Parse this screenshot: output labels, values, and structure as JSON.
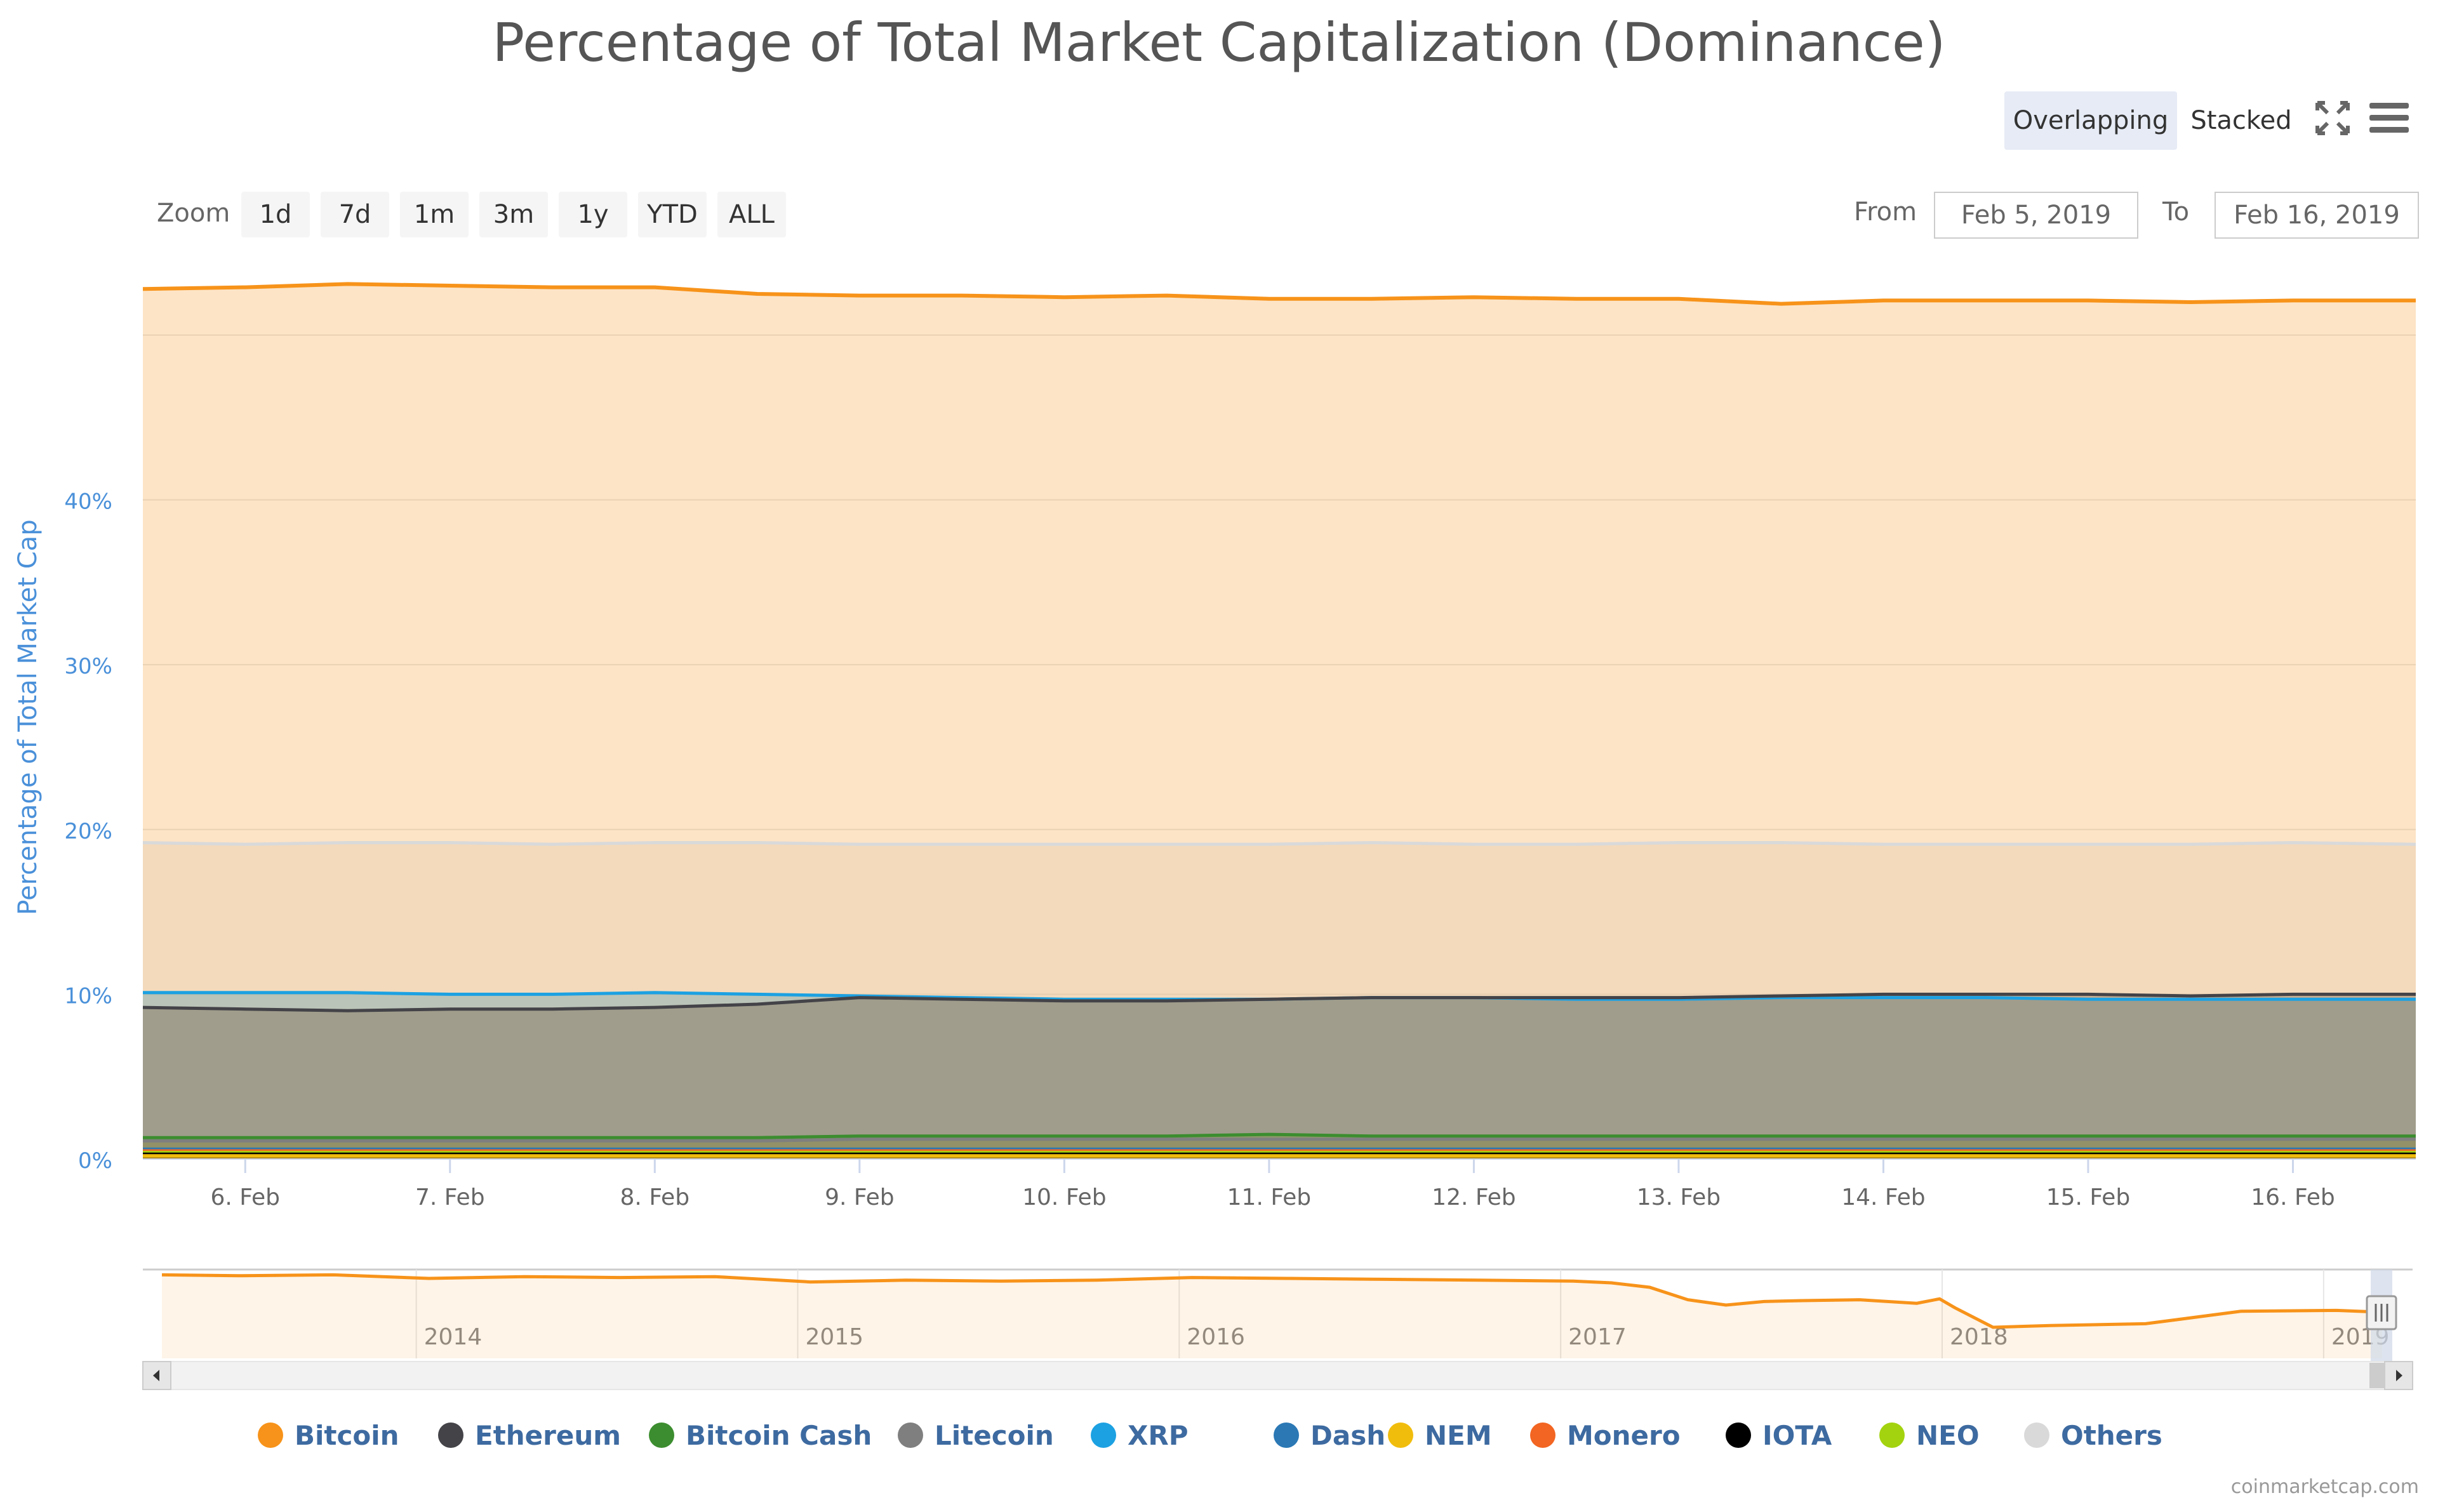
{
  "chart_data": {
    "type": "area",
    "title": "Percentage of Total Market Capitalization (Dominance)",
    "ylabel": "Percentage of Total Market Cap",
    "ylim": [
      0,
      53
    ],
    "y_ticks": [
      "0%",
      "10%",
      "20%",
      "30%",
      "40%"
    ],
    "y_tick_values": [
      0,
      10,
      20,
      30,
      40
    ],
    "x_ticks": [
      "6. Feb",
      "7. Feb",
      "8. Feb",
      "9. Feb",
      "10. Feb",
      "11. Feb",
      "12. Feb",
      "13. Feb",
      "14. Feb",
      "15. Feb",
      "16. Feb"
    ],
    "x_tick_days": [
      6,
      7,
      8,
      9,
      10,
      11,
      12,
      13,
      14,
      15,
      16
    ],
    "xlim_days": [
      5.5,
      16.6
    ],
    "x": [
      5.5,
      6.0,
      6.5,
      7.0,
      7.5,
      8.0,
      8.5,
      9.0,
      9.5,
      10.0,
      10.5,
      11.0,
      11.5,
      12.0,
      12.5,
      13.0,
      13.5,
      14.0,
      14.5,
      15.0,
      15.5,
      16.0,
      16.6
    ],
    "series": [
      {
        "name": "Others",
        "color": "#d9d9d9",
        "values": [
          19.2,
          19.1,
          19.2,
          19.2,
          19.1,
          19.2,
          19.2,
          19.1,
          19.1,
          19.1,
          19.1,
          19.1,
          19.2,
          19.1,
          19.1,
          19.2,
          19.2,
          19.1,
          19.1,
          19.1,
          19.1,
          19.2,
          19.1
        ]
      },
      {
        "name": "XRP",
        "color": "#1ca1e2",
        "values": [
          10.1,
          10.1,
          10.1,
          10.0,
          10.0,
          10.1,
          10.0,
          9.9,
          9.8,
          9.7,
          9.7,
          9.7,
          9.8,
          9.8,
          9.7,
          9.7,
          9.8,
          9.8,
          9.8,
          9.7,
          9.7,
          9.7,
          9.7
        ]
      },
      {
        "name": "Ethereum",
        "color": "#434348",
        "values": [
          9.2,
          9.1,
          9.0,
          9.1,
          9.1,
          9.2,
          9.4,
          9.8,
          9.7,
          9.6,
          9.6,
          9.7,
          9.8,
          9.8,
          9.8,
          9.8,
          9.9,
          10.0,
          10.0,
          10.0,
          9.9,
          10.0,
          10.0
        ]
      },
      {
        "name": "Bitcoin Cash",
        "color": "#3c8d2f",
        "values": [
          1.3,
          1.3,
          1.3,
          1.3,
          1.3,
          1.3,
          1.3,
          1.4,
          1.4,
          1.4,
          1.4,
          1.5,
          1.4,
          1.4,
          1.4,
          1.4,
          1.4,
          1.4,
          1.4,
          1.4,
          1.4,
          1.4,
          1.4
        ]
      },
      {
        "name": "Litecoin",
        "color": "#7f7f7f",
        "values": [
          1.1,
          1.1,
          1.1,
          1.1,
          1.1,
          1.1,
          1.1,
          1.2,
          1.2,
          1.2,
          1.2,
          1.2,
          1.2,
          1.2,
          1.2,
          1.2,
          1.2,
          1.2,
          1.2,
          1.2,
          1.2,
          1.2,
          1.2
        ]
      },
      {
        "name": "Dash",
        "color": "#2b78b5",
        "values": [
          0.6,
          0.6,
          0.6,
          0.6,
          0.6,
          0.6,
          0.6,
          0.6,
          0.6,
          0.6,
          0.6,
          0.6,
          0.6,
          0.6,
          0.6,
          0.6,
          0.6,
          0.6,
          0.6,
          0.6,
          0.6,
          0.6,
          0.6
        ]
      },
      {
        "name": "Monero",
        "color": "#f26522",
        "values": [
          0.5,
          0.5,
          0.5,
          0.5,
          0.5,
          0.5,
          0.5,
          0.5,
          0.5,
          0.5,
          0.5,
          0.5,
          0.5,
          0.5,
          0.5,
          0.5,
          0.5,
          0.5,
          0.5,
          0.5,
          0.5,
          0.5,
          0.5
        ]
      },
      {
        "name": "NEO",
        "color": "#a3d30f",
        "values": [
          0.4,
          0.4,
          0.4,
          0.4,
          0.4,
          0.4,
          0.4,
          0.4,
          0.4,
          0.4,
          0.4,
          0.4,
          0.4,
          0.4,
          0.4,
          0.4,
          0.4,
          0.4,
          0.4,
          0.4,
          0.4,
          0.4,
          0.4
        ]
      },
      {
        "name": "IOTA",
        "color": "#000000",
        "values": [
          0.3,
          0.3,
          0.3,
          0.3,
          0.3,
          0.3,
          0.3,
          0.3,
          0.3,
          0.3,
          0.3,
          0.3,
          0.3,
          0.3,
          0.3,
          0.3,
          0.3,
          0.3,
          0.3,
          0.3,
          0.3,
          0.3,
          0.3
        ]
      },
      {
        "name": "NEM",
        "color": "#f1bd0d",
        "values": [
          0.2,
          0.2,
          0.2,
          0.2,
          0.2,
          0.2,
          0.2,
          0.2,
          0.2,
          0.2,
          0.2,
          0.2,
          0.2,
          0.2,
          0.2,
          0.2,
          0.2,
          0.2,
          0.2,
          0.2,
          0.2,
          0.2,
          0.2
        ]
      },
      {
        "name": "Bitcoin",
        "color": "#f7931a",
        "values": [
          52.8,
          52.9,
          53.1,
          53.0,
          52.9,
          52.9,
          52.5,
          52.4,
          52.4,
          52.3,
          52.4,
          52.2,
          52.2,
          52.3,
          52.2,
          52.2,
          51.9,
          52.1,
          52.1,
          52.1,
          52.0,
          52.1,
          52.1
        ]
      }
    ],
    "navigator": {
      "x_labels": [
        "2014",
        "2015",
        "2016",
        "2017",
        "2018",
        "2019"
      ],
      "x_label_years": [
        2014,
        2015,
        2016,
        2017,
        2018,
        2019
      ],
      "xlim_years": [
        2013.25,
        2019.2
      ],
      "series_name": "Bitcoin",
      "years": [
        2013.3,
        2013.5,
        2013.75,
        2014.0,
        2014.25,
        2014.5,
        2014.75,
        2015.0,
        2015.25,
        2015.5,
        2015.75,
        2016.0,
        2016.25,
        2016.5,
        2016.75,
        2017.0,
        2017.1,
        2017.2,
        2017.3,
        2017.4,
        2017.5,
        2017.6,
        2017.75,
        2017.9,
        2017.96,
        2018.0,
        2018.1,
        2018.25,
        2018.5,
        2018.75,
        2019.0,
        2019.12
      ],
      "values": [
        94,
        93,
        94,
        90,
        92,
        91,
        92,
        86,
        88,
        87,
        88,
        91,
        90,
        89,
        88,
        87,
        85,
        80,
        66,
        60,
        64,
        65,
        66,
        62,
        67,
        57,
        35,
        37,
        39,
        53,
        54,
        52
      ]
    }
  },
  "zoom": {
    "label": "Zoom",
    "buttons": [
      "1d",
      "7d",
      "1m",
      "3m",
      "1y",
      "YTD",
      "ALL"
    ]
  },
  "range": {
    "from_label": "From",
    "from_value": "Feb 5, 2019",
    "to_label": "To",
    "to_value": "Feb 16, 2019"
  },
  "modes": {
    "overlapping": "Overlapping",
    "stacked": "Stacked",
    "active": "overlapping"
  },
  "legend": [
    {
      "name": "Bitcoin",
      "color": "#f7931a"
    },
    {
      "name": "Ethereum",
      "color": "#434348"
    },
    {
      "name": "Bitcoin Cash",
      "color": "#3c8d2f"
    },
    {
      "name": "Litecoin",
      "color": "#7f7f7f"
    },
    {
      "name": "XRP",
      "color": "#1ca1e2"
    },
    {
      "name": "Dash",
      "color": "#2b78b5"
    },
    {
      "name": "NEM",
      "color": "#f1bd0d"
    },
    {
      "name": "Monero",
      "color": "#f26522"
    },
    {
      "name": "IOTA",
      "color": "#000000"
    },
    {
      "name": "NEO",
      "color": "#a3d30f"
    },
    {
      "name": "Others",
      "color": "#d9d9d9"
    }
  ],
  "icons": {
    "fullscreen": "fullscreen-icon",
    "menu": "menu-icon"
  },
  "credits": "coinmarketcap.com",
  "colors": {
    "axis_label": "#4a90d9",
    "legend_text": "#3d6aa0"
  }
}
